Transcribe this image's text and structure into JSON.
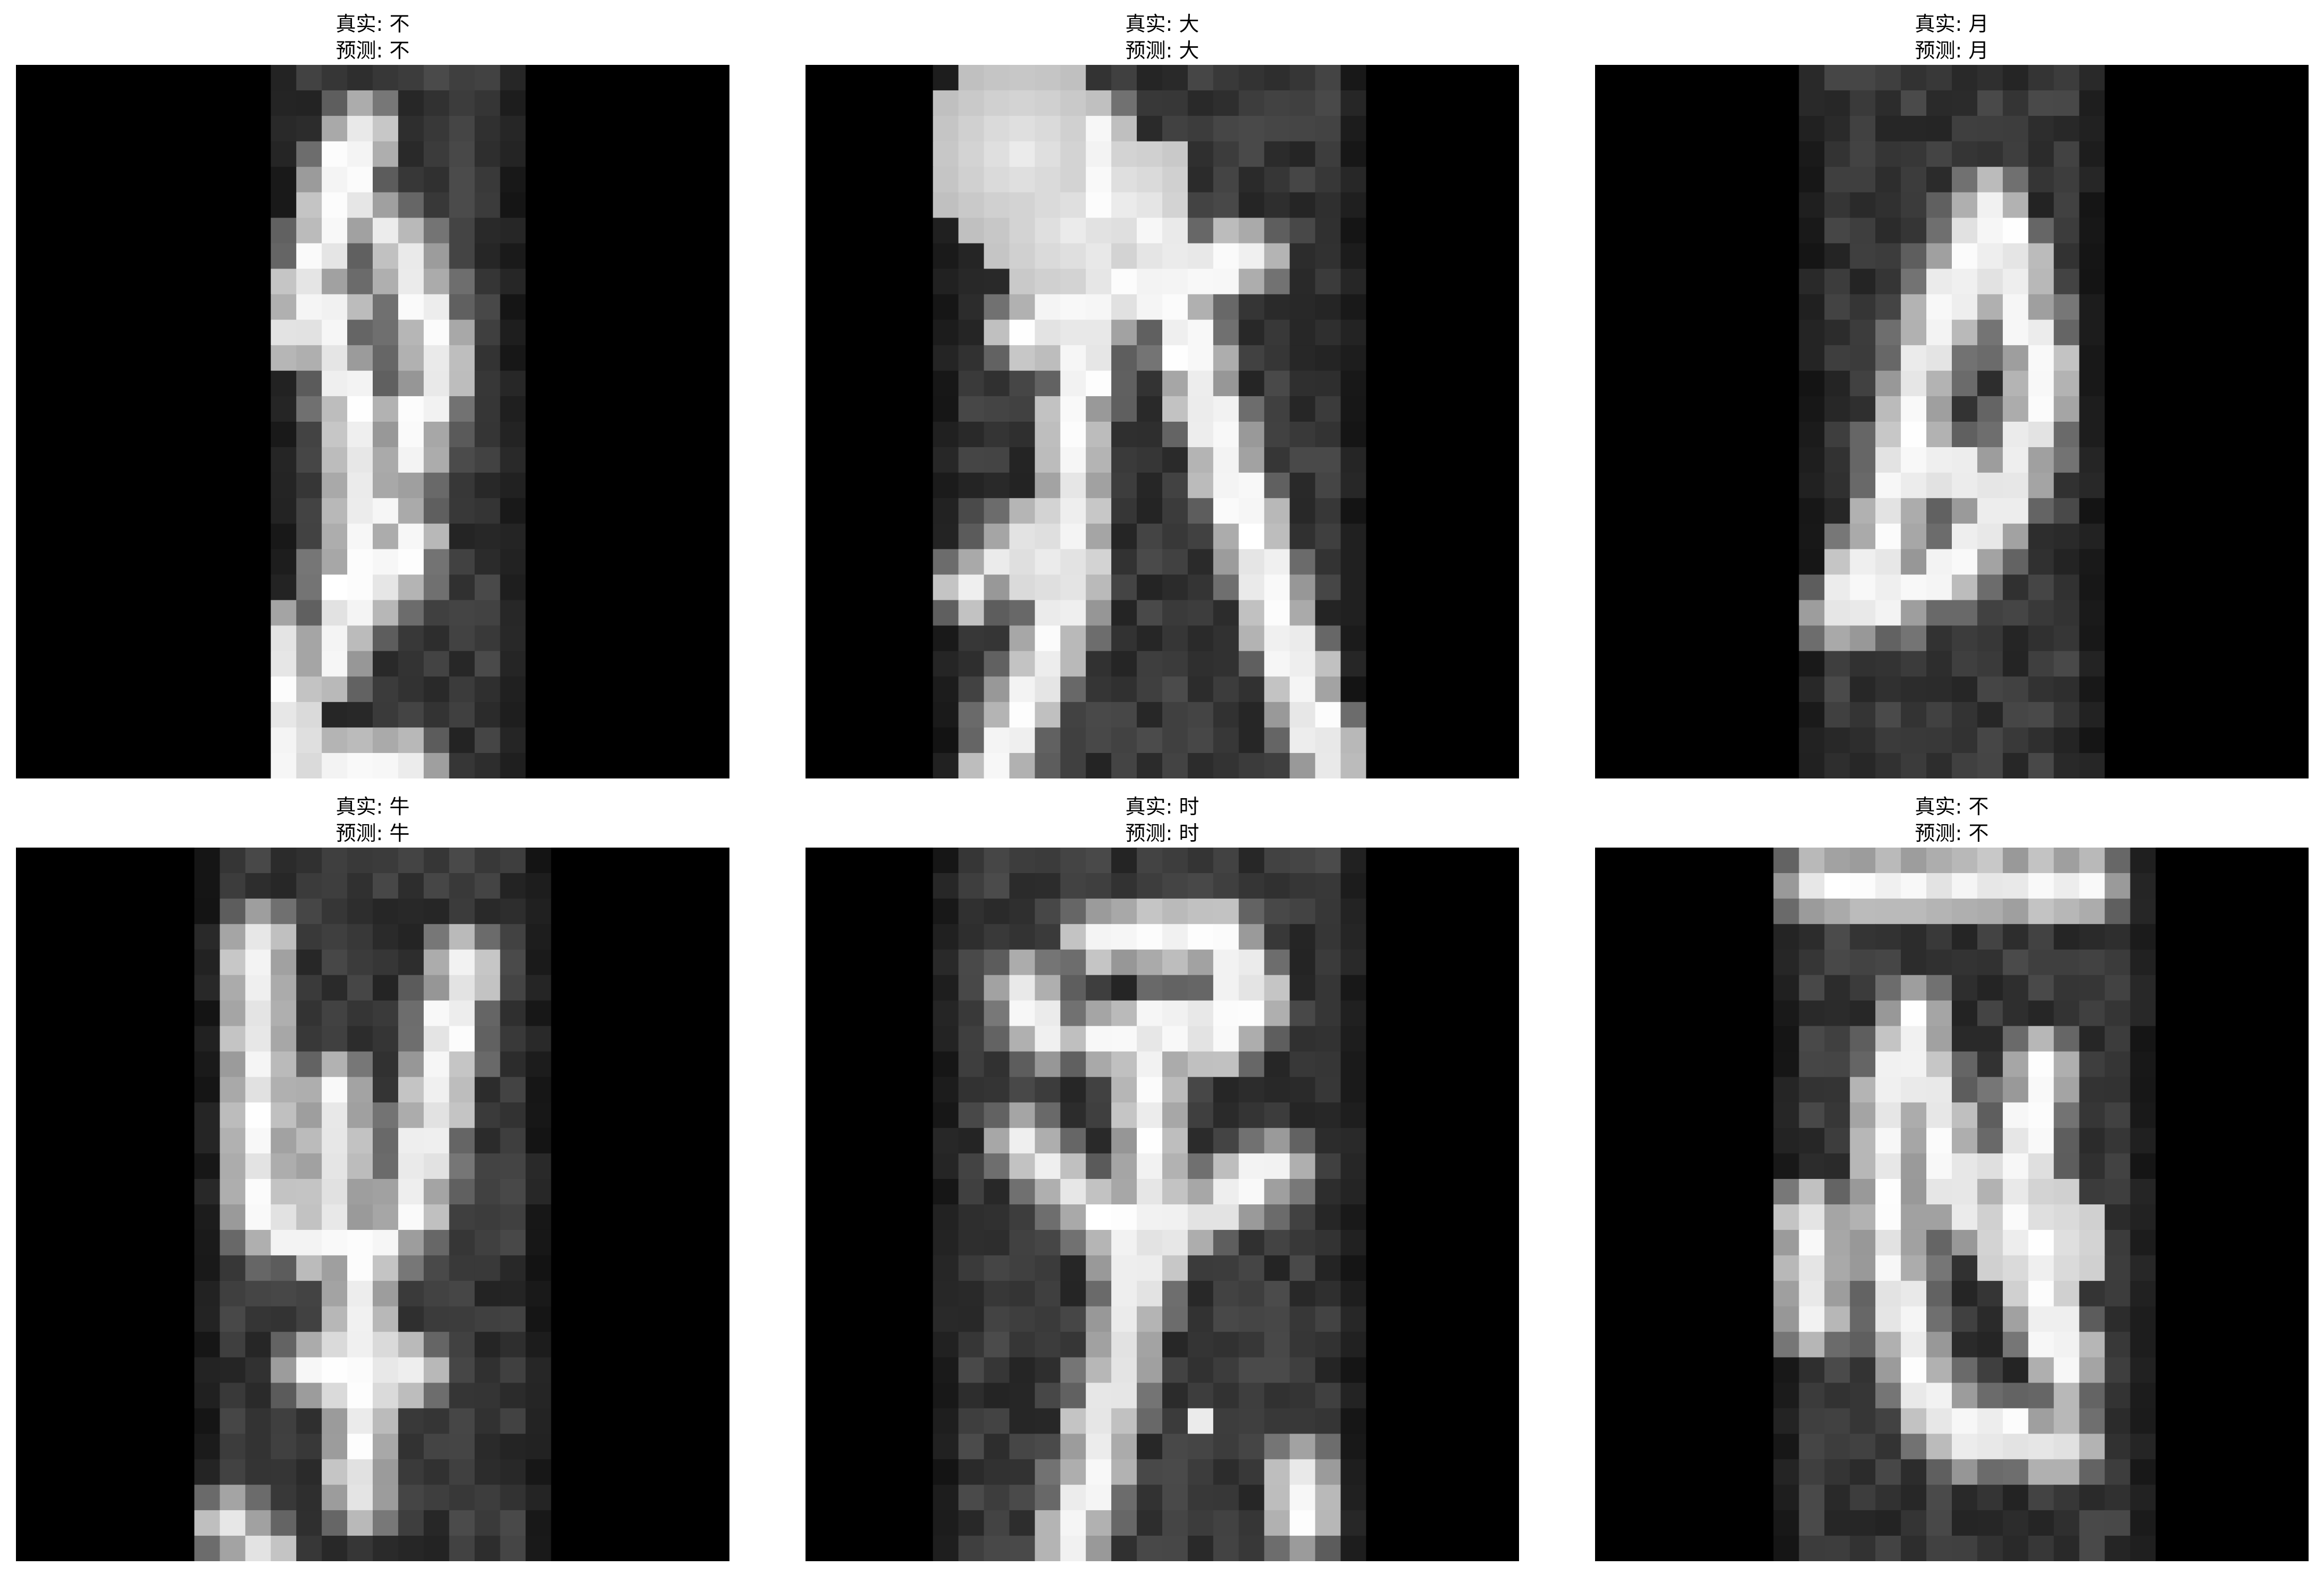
{
  "panels": [
    {
      "true_label": "真实: 不",
      "pred_label": "预测: 不",
      "image": {
        "description_icon": "handwritten-glyph-image",
        "strip_cols": [
          10,
          19
        ],
        "strokes": [
          [
            [
              13,
              2
            ],
            [
              12,
              5
            ],
            [
              11,
              9
            ],
            [
              13,
              13
            ],
            [
              13,
              18
            ],
            [
              12,
              23
            ]
          ],
          [
            [
              13,
              5
            ],
            [
              15,
              7
            ],
            [
              16,
              11
            ],
            [
              15,
              15
            ]
          ],
          [
            [
              10,
              10
            ],
            [
              12,
              9
            ]
          ],
          [
            [
              13,
              16
            ],
            [
              15,
              18
            ],
            [
              14,
              20
            ]
          ],
          [
            [
              10,
              22
            ],
            [
              10,
              27
            ]
          ],
          [
            [
              12,
              27
            ],
            [
              15,
              27
            ]
          ]
        ],
        "blobs": [
          [
            10,
            26,
            2.0
          ]
        ]
      }
    },
    {
      "true_label": "真实: 大",
      "pred_label": "预测: 大",
      "image": {
        "description_icon": "handwritten-glyph-image",
        "strip_cols": [
          5,
          21
        ],
        "strokes": [
          [
            [
              11,
              2
            ],
            [
              11,
              9
            ],
            [
              10,
              14
            ],
            [
              10,
              20
            ],
            [
              8,
              25
            ],
            [
              7,
              27
            ]
          ],
          [
            [
              13,
              5
            ],
            [
              15,
              12
            ],
            [
              17,
              18
            ],
            [
              19,
              24
            ],
            [
              20,
              27
            ]
          ],
          [
            [
              8,
              10
            ],
            [
              14,
              8
            ],
            [
              17,
              7
            ]
          ],
          [
            [
              6,
              20
            ],
            [
              8,
              18
            ]
          ]
        ],
        "blobs": [
          [
            8,
            3,
            4.0
          ],
          [
            10,
            6,
            3.5
          ],
          [
            12,
            5,
            3.0
          ],
          [
            9,
            19,
            2.2
          ]
        ]
      }
    },
    {
      "true_label": "真实: 月",
      "pred_label": "预测: 月",
      "image": {
        "description_icon": "handwritten-glyph-image",
        "strip_cols": [
          8,
          19
        ],
        "strokes": [
          [
            [
              15,
              5
            ],
            [
              13,
              9
            ],
            [
              12,
              13
            ],
            [
              11,
              18
            ],
            [
              9,
              21
            ]
          ],
          [
            [
              15,
              5
            ],
            [
              16,
              8
            ],
            [
              17,
              12
            ],
            [
              16,
              16
            ],
            [
              14,
              19
            ],
            [
              12,
              20
            ],
            [
              10,
              21
            ]
          ],
          [
            [
              13,
              9
            ],
            [
              15,
              8
            ]
          ],
          [
            [
              12,
              15
            ],
            [
              15,
              16
            ]
          ]
        ],
        "blobs": [
          [
            10,
            20,
            1.2
          ]
        ]
      }
    },
    {
      "true_label": "真实: 牛",
      "pred_label": "预测: 牛",
      "image": {
        "description_icon": "handwritten-glyph-image",
        "strip_cols": [
          7,
          20
        ],
        "strokes": [
          [
            [
              9,
              3
            ],
            [
              9,
              9
            ],
            [
              9,
              14
            ],
            [
              11,
              15
            ],
            [
              14,
              15
            ]
          ],
          [
            [
              17,
              4
            ],
            [
              16,
              9
            ],
            [
              15,
              14
            ]
          ],
          [
            [
              12,
              9
            ],
            [
              12,
              15
            ]
          ],
          [
            [
              13,
              15
            ],
            [
              13,
              20
            ],
            [
              13,
              25
            ]
          ],
          [
            [
              11,
              20
            ],
            [
              15,
              20
            ]
          ],
          [
            [
              8,
              26
            ],
            [
              9,
              27
            ]
          ]
        ],
        "blobs": [
          [
            13,
            20,
            1.6
          ]
        ]
      }
    },
    {
      "true_label": "真实: 时",
      "pred_label": "预测: 时",
      "image": {
        "description_icon": "handwritten-glyph-image",
        "strip_cols": [
          5,
          21
        ],
        "strokes": [
          [
            [
              11,
              3
            ],
            [
              16,
              3
            ],
            [
              17,
              6
            ],
            [
              11,
              7
            ],
            [
              16,
              7
            ]
          ],
          [
            [
              8,
              5
            ],
            [
              9,
              7
            ]
          ],
          [
            [
              13,
              8
            ],
            [
              13,
              13
            ],
            [
              12,
              16
            ]
          ],
          [
            [
              8,
              11
            ],
            [
              10,
              13
            ],
            [
              12,
              15
            ],
            [
              15,
              14
            ],
            [
              18,
              12
            ]
          ],
          [
            [
              13,
              15
            ],
            [
              12,
              19
            ],
            [
              11,
              23
            ],
            [
              10,
              27
            ]
          ],
          [
            [
              19,
              24
            ],
            [
              19,
              26
            ]
          ]
        ],
        "blobs": [
          [
            15,
            22,
            1.0
          ]
        ]
      }
    },
    {
      "true_label": "真实: 不",
      "pred_label": "预测: 不",
      "image": {
        "description_icon": "handwritten-glyph-image",
        "strip_cols": [
          7,
          21
        ],
        "strokes": [
          [
            [
              8,
              1
            ],
            [
              15,
              1
            ],
            [
              19,
              1
            ]
          ],
          [
            [
              12,
              6
            ],
            [
              11,
              10
            ],
            [
              11,
              15
            ],
            [
              12,
              20
            ],
            [
              14,
              23
            ]
          ],
          [
            [
              12,
              7
            ],
            [
              13,
              11
            ],
            [
              14,
              14
            ]
          ],
          [
            [
              17,
              8
            ],
            [
              16,
              13
            ],
            [
              17,
              17
            ],
            [
              18,
              20
            ]
          ],
          [
            [
              13,
              22
            ],
            [
              18,
              23
            ]
          ],
          [
            [
              8,
              14
            ],
            [
              8,
              18
            ]
          ]
        ],
        "blobs": [
          [
            17,
            15,
            2.4
          ],
          [
            16,
            12,
            1.4
          ]
        ]
      }
    }
  ]
}
